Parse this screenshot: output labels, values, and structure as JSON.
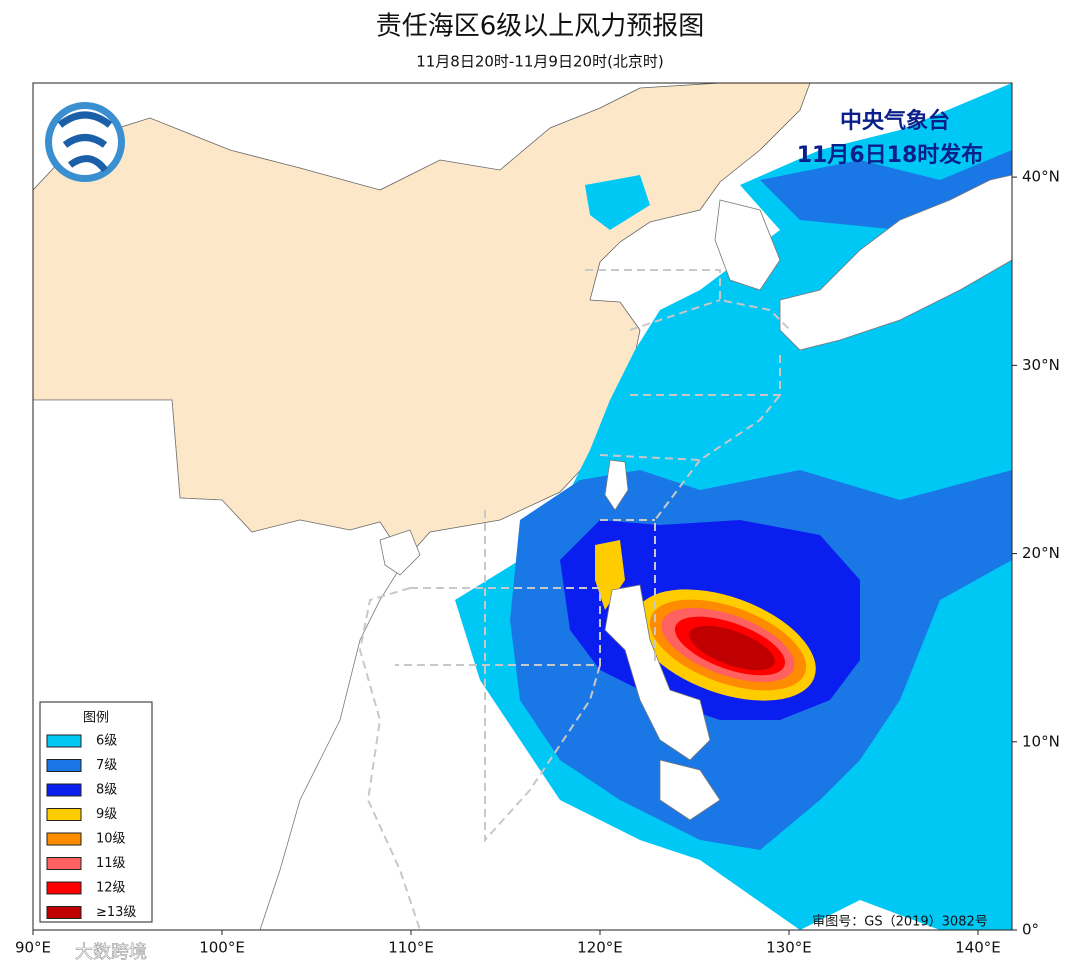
{
  "map": {
    "title": "责任海区6级以上风力预报图",
    "subtitle": "11月8日20时-11月9日20时(北京时)",
    "issuer": "中央气象台",
    "issue_time": "11月6日18时发布",
    "approval": "审图号：GS（2019）3082号",
    "watermark": "大数跨境",
    "xlim": [
      90,
      141.8
    ],
    "ylim": [
      0,
      45
    ],
    "xticks": [
      {
        "value": 90,
        "label": "90°E"
      },
      {
        "value": 100,
        "label": "100°E"
      },
      {
        "value": 110,
        "label": "110°E"
      },
      {
        "value": 120,
        "label": "120°E"
      },
      {
        "value": 130,
        "label": "130°E"
      },
      {
        "value": 140,
        "label": "140°E"
      }
    ],
    "yticks": [
      {
        "value": 0,
        "label": "0°"
      },
      {
        "value": 10,
        "label": "10°N"
      },
      {
        "value": 20,
        "label": "20°N"
      },
      {
        "value": 30,
        "label": "30°N"
      },
      {
        "value": 40,
        "label": "40°N"
      }
    ],
    "legend": {
      "title": "图例",
      "items": [
        {
          "label": "6级",
          "color": "#00c8f5"
        },
        {
          "label": "7级",
          "color": "#1a78e6"
        },
        {
          "label": "8级",
          "color": "#0a1ef0"
        },
        {
          "label": "9级",
          "color": "#ffcc00"
        },
        {
          "label": "10级",
          "color": "#ff8c00"
        },
        {
          "label": "11级",
          "color": "#ff6060"
        },
        {
          "label": "12级",
          "color": "#ff0000"
        },
        {
          "label": "≥13级",
          "color": "#c00000"
        }
      ]
    }
  }
}
